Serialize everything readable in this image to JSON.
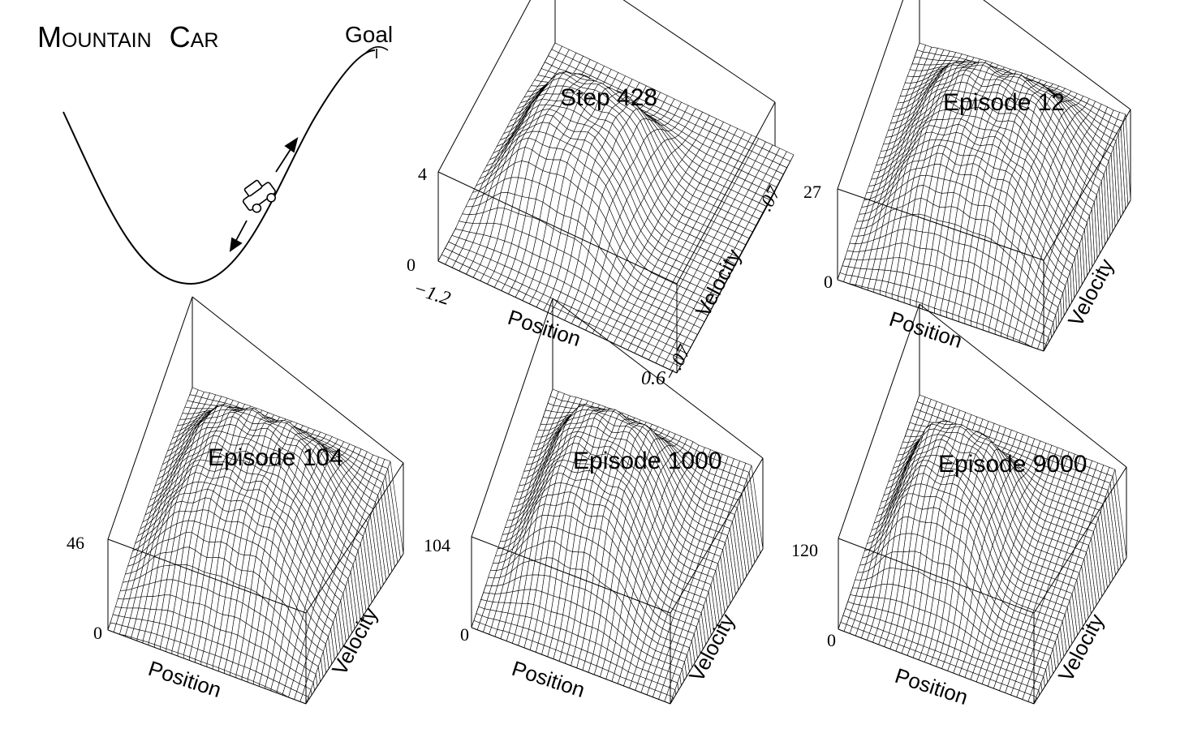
{
  "figure": {
    "title_main": "Mountain",
    "title_second": "Car",
    "goal_label": "Goal"
  },
  "chart_data": [
    {
      "type": "surface",
      "title": "Step 428",
      "xlabel": "Position",
      "ylabel": "Velocity",
      "zlim": [
        0,
        4
      ],
      "z_tick_labels": [
        "0",
        "4"
      ],
      "x_tick_labels": [
        "−1.2",
        "0.6"
      ],
      "y_tick_labels": [
        "−.07",
        ".07"
      ],
      "xlim": [
        -1.2,
        0.6
      ],
      "ylim": [
        -0.07,
        0.07
      ]
    },
    {
      "type": "surface",
      "title": "Episode 12",
      "xlabel": "Position",
      "ylabel": "Velocity",
      "zlim": [
        0,
        27
      ],
      "z_tick_labels": [
        "0",
        "27"
      ]
    },
    {
      "type": "surface",
      "title": "Episode 104",
      "xlabel": "Position",
      "ylabel": "Velocity",
      "zlim": [
        0,
        46
      ],
      "z_tick_labels": [
        "0",
        "46"
      ]
    },
    {
      "type": "surface",
      "title": "Episode 1000",
      "xlabel": "Position",
      "ylabel": "Velocity",
      "zlim": [
        0,
        104
      ],
      "z_tick_labels": [
        "0",
        "104"
      ]
    },
    {
      "type": "surface",
      "title": "Episode 9000",
      "xlabel": "Position",
      "ylabel": "Velocity",
      "zlim": [
        0,
        120
      ],
      "z_tick_labels": [
        "0",
        "120"
      ]
    }
  ]
}
